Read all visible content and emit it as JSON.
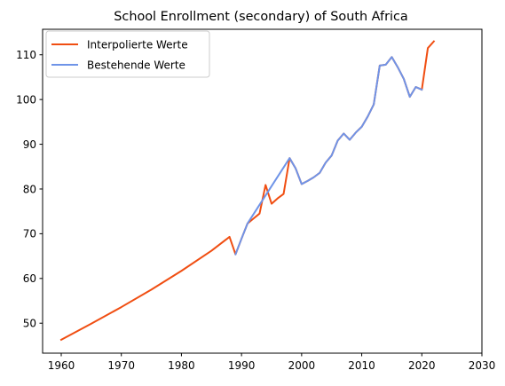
{
  "chart_data": {
    "type": "line",
    "title": "School Enrollment (secondary) of South Africa",
    "xlabel": "",
    "ylabel": "",
    "xlim": [
      1956.9,
      2030
    ],
    "ylim": [
      43.3,
      115.7
    ],
    "xticks": [
      1960,
      1970,
      1980,
      1990,
      2000,
      2010,
      2020,
      2030
    ],
    "yticks": [
      50,
      60,
      70,
      80,
      90,
      100,
      110
    ],
    "grid": false,
    "legend_placement": "top-left",
    "series": [
      {
        "name": "Interpolierte Werte",
        "color": "#f04e12",
        "x": [
          1960,
          1965,
          1970,
          1975,
          1980,
          1985,
          1988,
          1989,
          1990,
          1991,
          1992,
          1993,
          1994,
          1995,
          1996,
          1997,
          1998,
          1999,
          2000,
          2001,
          2002,
          2003,
          2004,
          2005,
          2006,
          2007,
          2008,
          2009,
          2010,
          2011,
          2012,
          2013,
          2014,
          2015,
          2016,
          2017,
          2018,
          2019,
          2020,
          2021,
          2022
        ],
        "y": [
          46.3,
          49.9,
          53.6,
          57.5,
          61.7,
          66.2,
          69.3,
          65.4,
          68.9,
          72.3,
          73.4,
          74.5,
          80.9,
          76.7,
          77.9,
          78.9,
          86.9,
          84.6,
          81.1,
          81.8,
          82.6,
          83.6,
          85.9,
          87.5,
          90.8,
          92.4,
          91.0,
          92.6,
          93.9,
          96.2,
          98.9,
          107.6,
          107.8,
          109.5,
          107.2,
          104.6,
          100.6,
          102.8,
          102.2,
          111.5,
          113.0
        ]
      },
      {
        "name": "Bestehende Werte",
        "color": "#6f94e8",
        "x": [
          1989,
          1990,
          1991,
          1998,
          1999,
          2000,
          2001,
          2002,
          2003,
          2004,
          2005,
          2006,
          2007,
          2008,
          2009,
          2010,
          2011,
          2012,
          2013,
          2014,
          2015,
          2016,
          2017,
          2018,
          2019,
          2020
        ],
        "y": [
          65.4,
          68.9,
          72.3,
          86.9,
          84.6,
          81.1,
          81.8,
          82.6,
          83.6,
          85.9,
          87.5,
          90.8,
          92.4,
          91.0,
          92.6,
          93.9,
          96.2,
          98.9,
          107.6,
          107.8,
          109.5,
          107.2,
          104.6,
          100.6,
          102.8,
          102.2
        ]
      }
    ]
  }
}
